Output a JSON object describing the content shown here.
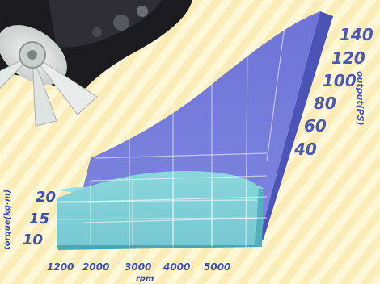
{
  "chart_data": {
    "type": "area",
    "x_axis": {
      "label": "rpm",
      "ticks": [
        1200,
        2000,
        3000,
        4000,
        5000
      ]
    },
    "y_axis_right": {
      "label": "output(PS)",
      "ticks": [
        40,
        60,
        80,
        100,
        120,
        140
      ],
      "range": [
        20,
        145
      ]
    },
    "y_axis_left": {
      "label": "torque(kg-m)",
      "ticks": [
        10,
        15,
        20
      ],
      "range": [
        7,
        22
      ]
    },
    "series": [
      {
        "name": "output(PS)",
        "axis": "right",
        "color": "#6a72d6",
        "points": [
          [
            1200,
            45
          ],
          [
            2000,
            55
          ],
          [
            3000,
            78
          ],
          [
            4000,
            108
          ],
          [
            4500,
            128
          ],
          [
            5000,
            142
          ]
        ]
      },
      {
        "name": "torque(kg-m)",
        "axis": "left",
        "color": "#7fd0d8",
        "points": [
          [
            1200,
            20
          ],
          [
            2000,
            21
          ],
          [
            3000,
            21
          ],
          [
            4000,
            22
          ],
          [
            5000,
            21
          ]
        ]
      }
    ],
    "grid": true
  },
  "colors": {
    "output_fill": "#6a72d6",
    "output_side": "#4c54b8",
    "torque_fill": "#86d3d9",
    "torque_side": "#4fb2bd",
    "background": "#fff7d6"
  },
  "decoration": {
    "engine_fan": "engine-fan-photo"
  }
}
